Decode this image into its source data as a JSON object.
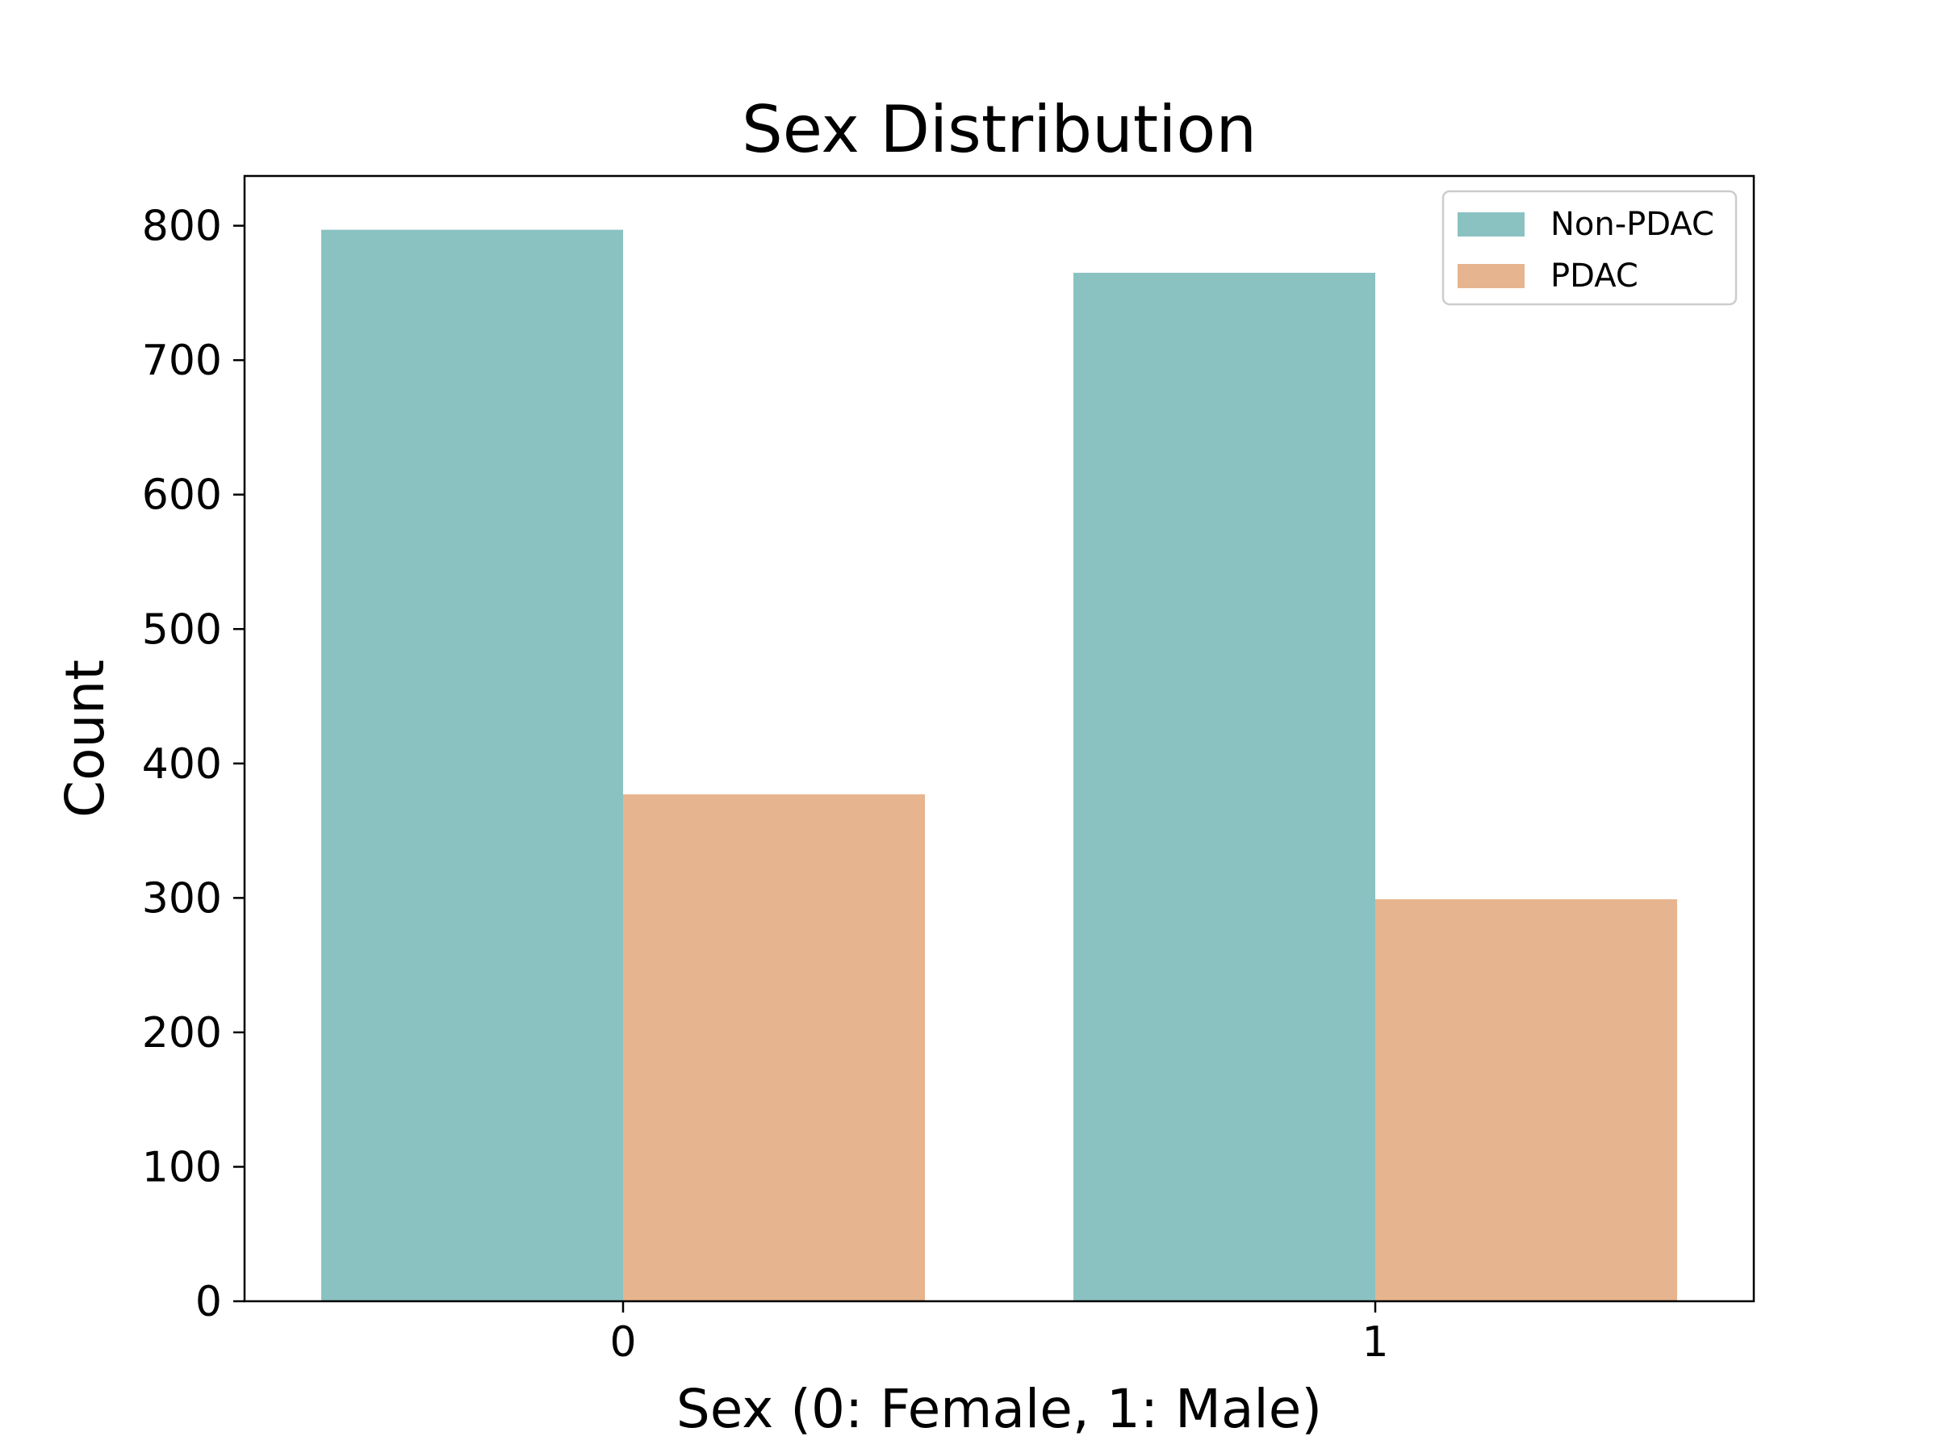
{
  "chart_data": {
    "type": "bar",
    "title": "Sex Distribution",
    "xlabel": "Sex (0: Female, 1: Male)",
    "ylabel": "Count",
    "categories": [
      "0",
      "1"
    ],
    "series": [
      {
        "name": "Non-PDAC",
        "color": "#8ac2c2",
        "values": [
          797,
          765
        ]
      },
      {
        "name": "PDAC",
        "color": "#e6b48e",
        "values": [
          377,
          299
        ]
      }
    ],
    "ylim": [
      0,
      837
    ],
    "yticks": [
      0,
      100,
      200,
      300,
      400,
      500,
      600,
      700,
      800
    ],
    "grid": false,
    "legend_position": "top-right"
  }
}
